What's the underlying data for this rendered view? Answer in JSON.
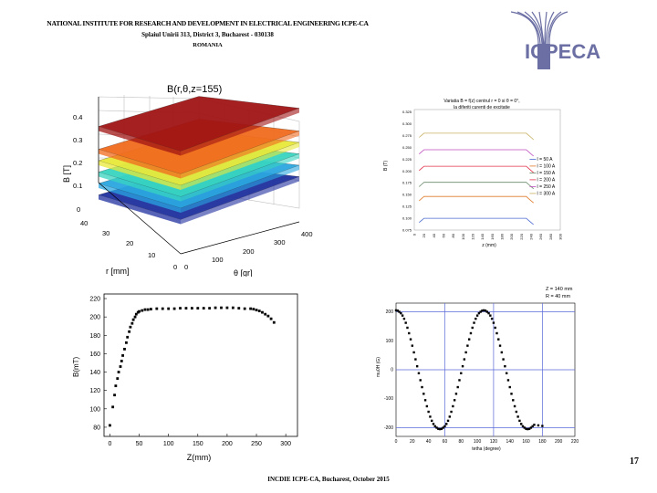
{
  "header": {
    "line1": "NATIONAL INSTITUTE FOR RESEARCH AND DEVELOPMENT IN ELECTRICAL ENGINEERING ICPE-CA",
    "line2": "Splaiul Unirii 313, District 3, Bucharest - 030138",
    "line3": "ROMANIA"
  },
  "logo": {
    "text": "ICPECA",
    "color": "#6b6fa3"
  },
  "footer": {
    "text": "INCDIE ICPE-CA, Bucharest, October 2015"
  },
  "page_number": "17",
  "chart_data": [
    {
      "type": "surface",
      "title": "B(r,θ,z=155)",
      "xlabel": "r [mm]",
      "ylabel": "θ [gr]",
      "zlabel": "B [T]",
      "r_ticks": [
        "0",
        "10",
        "20",
        "30",
        "40"
      ],
      "theta_ticks": [
        "0",
        "100",
        "200",
        "300",
        "400"
      ],
      "z_ticks": [
        "0",
        "0.1",
        "0.2",
        "0.3",
        "0.4"
      ],
      "layers": [
        {
          "value": 0.05,
          "color": "#1f2f9e"
        },
        {
          "value": 0.1,
          "color": "#2aa6e0"
        },
        {
          "value": 0.15,
          "color": "#38d4c0"
        },
        {
          "value": 0.2,
          "color": "#e8e83a"
        },
        {
          "value": 0.25,
          "color": "#f06a1e"
        },
        {
          "value": 0.35,
          "color": "#a01414"
        }
      ]
    },
    {
      "type": "line",
      "title": "Variatia B = f(z) centrul r = 0 si θ = 0°,",
      "subtitle": "la diferiti curenti de excitatie",
      "xlabel": "z (mm)",
      "ylabel": "B (T)",
      "x_ticks": [
        "0",
        "20",
        "40",
        "60",
        "80",
        "100",
        "120",
        "140",
        "160",
        "180",
        "200",
        "220",
        "240",
        "260",
        "280",
        "300"
      ],
      "y_ticks": [
        "0.075",
        "0.100",
        "0.125",
        "0.150",
        "0.175",
        "0.200",
        "0.225",
        "0.250",
        "0.275",
        "0.300",
        "0.325"
      ],
      "ylim": [
        0.075,
        0.33
      ],
      "xlim": [
        0,
        300
      ],
      "series": [
        {
          "name": "I = 50 A",
          "value": 0.1,
          "color": "#4a6ad0"
        },
        {
          "name": "I = 100 A",
          "value": 0.146,
          "color": "#e07a2a"
        },
        {
          "name": "I = 150 A",
          "value": 0.176,
          "color": "#6a8a6a"
        },
        {
          "name": "I = 200 A",
          "value": 0.21,
          "color": "#e0304a"
        },
        {
          "name": "I = 250 A",
          "value": 0.245,
          "color": "#c050c0"
        },
        {
          "name": "I = 300 A",
          "value": 0.28,
          "color": "#c8b060"
        }
      ]
    },
    {
      "type": "scatter",
      "xlabel": "Z(mm)",
      "ylabel": "B(mT)",
      "x_ticks": [
        "0",
        "50",
        "100",
        "150",
        "200",
        "250",
        "300"
      ],
      "y_ticks": [
        "80",
        "100",
        "120",
        "140",
        "160",
        "180",
        "200",
        "220"
      ],
      "xlim": [
        -10,
        320
      ],
      "ylim": [
        70,
        225
      ],
      "points": [
        [
          0,
          82
        ],
        [
          5,
          102
        ],
        [
          8,
          115
        ],
        [
          10,
          125
        ],
        [
          13,
          133
        ],
        [
          15,
          140
        ],
        [
          18,
          146
        ],
        [
          20,
          152
        ],
        [
          22,
          158
        ],
        [
          25,
          165
        ],
        [
          28,
          172
        ],
        [
          30,
          178
        ],
        [
          33,
          184
        ],
        [
          35,
          189
        ],
        [
          38,
          193
        ],
        [
          40,
          197
        ],
        [
          43,
          200
        ],
        [
          45,
          203
        ],
        [
          48,
          205
        ],
        [
          50,
          206
        ],
        [
          55,
          207
        ],
        [
          60,
          208
        ],
        [
          65,
          208
        ],
        [
          70,
          208.5
        ],
        [
          80,
          209
        ],
        [
          90,
          209
        ],
        [
          100,
          209
        ],
        [
          110,
          209
        ],
        [
          120,
          209.5
        ],
        [
          130,
          209.5
        ],
        [
          140,
          209.5
        ],
        [
          150,
          209.5
        ],
        [
          160,
          209.5
        ],
        [
          170,
          209.5
        ],
        [
          180,
          210
        ],
        [
          190,
          210
        ],
        [
          200,
          210
        ],
        [
          210,
          210
        ],
        [
          220,
          209.5
        ],
        [
          230,
          209
        ],
        [
          240,
          209
        ],
        [
          245,
          208.5
        ],
        [
          250,
          207.5
        ],
        [
          255,
          206.5
        ],
        [
          260,
          205
        ],
        [
          265,
          203
        ],
        [
          270,
          201
        ],
        [
          275,
          198
        ],
        [
          280,
          194
        ]
      ]
    },
    {
      "type": "scatter",
      "annotation_line1": "Z = 140 mm",
      "annotation_line2": "R = 40 mm",
      "xlabel": "tetha (degree)",
      "ylabel": "mu0H (G)",
      "x_ticks": [
        "0",
        "20",
        "40",
        "60",
        "80",
        "100",
        "120",
        "140",
        "160",
        "180",
        "200",
        "220"
      ],
      "y_ticks": [
        "-200",
        "-100",
        "0",
        "100",
        "200"
      ],
      "xlim": [
        0,
        220
      ],
      "ylim": [
        -230,
        230
      ],
      "points": [
        [
          0,
          205
        ],
        [
          2,
          204
        ],
        [
          4,
          200
        ],
        [
          6,
          195
        ],
        [
          8,
          187
        ],
        [
          10,
          176
        ],
        [
          12,
          162
        ],
        [
          14,
          145
        ],
        [
          16,
          126
        ],
        [
          18,
          105
        ],
        [
          20,
          83
        ],
        [
          22,
          60
        ],
        [
          24,
          36
        ],
        [
          26,
          12
        ],
        [
          28,
          -12
        ],
        [
          30,
          -36
        ],
        [
          32,
          -60
        ],
        [
          34,
          -83
        ],
        [
          36,
          -105
        ],
        [
          38,
          -126
        ],
        [
          40,
          -145
        ],
        [
          42,
          -162
        ],
        [
          44,
          -176
        ],
        [
          46,
          -187
        ],
        [
          48,
          -195
        ],
        [
          50,
          -200
        ],
        [
          52,
          -204
        ],
        [
          54,
          -205
        ],
        [
          56,
          -204
        ],
        [
          58,
          -200
        ],
        [
          60,
          -195
        ],
        [
          62,
          -187
        ],
        [
          64,
          -176
        ],
        [
          66,
          -162
        ],
        [
          68,
          -145
        ],
        [
          70,
          -126
        ],
        [
          72,
          -105
        ],
        [
          74,
          -83
        ],
        [
          76,
          -60
        ],
        [
          78,
          -36
        ],
        [
          80,
          -12
        ],
        [
          82,
          12
        ],
        [
          84,
          36
        ],
        [
          86,
          60
        ],
        [
          88,
          83
        ],
        [
          90,
          105
        ],
        [
          92,
          126
        ],
        [
          94,
          145
        ],
        [
          96,
          162
        ],
        [
          98,
          176
        ],
        [
          100,
          187
        ],
        [
          102,
          195
        ],
        [
          104,
          200
        ],
        [
          106,
          204
        ],
        [
          108,
          205
        ],
        [
          110,
          204
        ],
        [
          112,
          200
        ],
        [
          114,
          195
        ],
        [
          116,
          187
        ],
        [
          118,
          176
        ],
        [
          120,
          162
        ],
        [
          122,
          145
        ],
        [
          124,
          126
        ],
        [
          126,
          105
        ],
        [
          128,
          83
        ],
        [
          130,
          60
        ],
        [
          132,
          36
        ],
        [
          134,
          12
        ],
        [
          136,
          -12
        ],
        [
          138,
          -36
        ],
        [
          140,
          -60
        ],
        [
          142,
          -83
        ],
        [
          144,
          -105
        ],
        [
          146,
          -126
        ],
        [
          148,
          -145
        ],
        [
          150,
          -162
        ],
        [
          152,
          -176
        ],
        [
          154,
          -187
        ],
        [
          156,
          -195
        ],
        [
          158,
          -200
        ],
        [
          160,
          -204
        ],
        [
          162,
          -205
        ],
        [
          164,
          -204
        ],
        [
          166,
          -200
        ],
        [
          168,
          -195
        ],
        [
          170,
          -190
        ],
        [
          175,
          -192
        ],
        [
          180,
          -194
        ]
      ],
      "gridlines_x": [
        60,
        120,
        180
      ],
      "gridlines_y": [
        -200,
        0,
        200
      ],
      "grid_color": "#5a6ad8"
    }
  ]
}
